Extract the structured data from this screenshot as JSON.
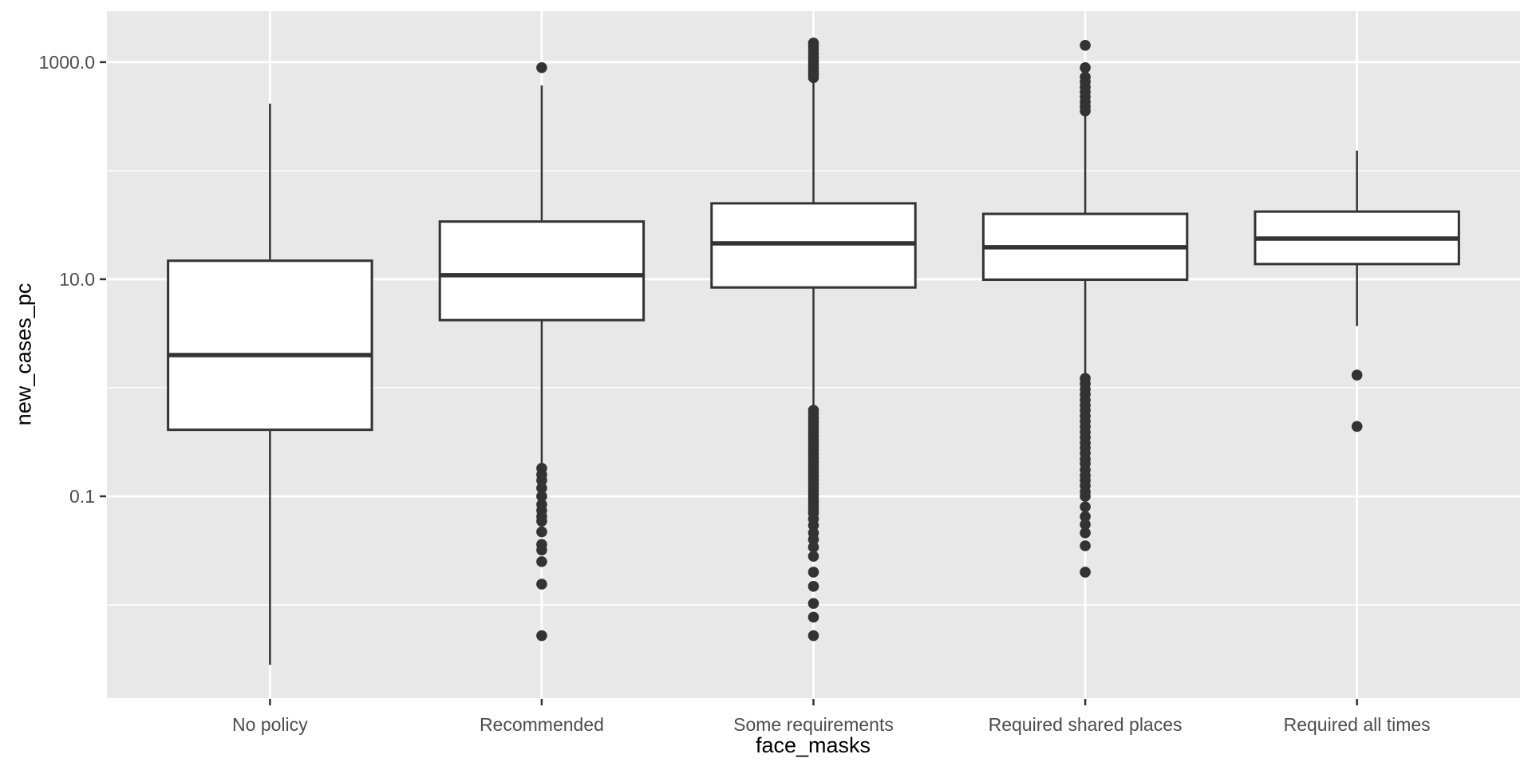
{
  "figure": {
    "xlabel": "face_masks",
    "ylabel": "new_cases_pc"
  },
  "style": {
    "panel_bg": "#E8E8E8",
    "gridline_color": "#FFFFFF",
    "box_stroke": "#333333",
    "box_fill": "#FFFFFF",
    "outlier_color": "#333333",
    "tick_label_color": "#4D4D4D",
    "axis_title_color": "#000000"
  },
  "chart_data": {
    "type": "boxplot",
    "orientation": "vertical",
    "title": "",
    "xlabel": "face_masks",
    "ylabel": "new_cases_pc",
    "y_scale": "log10",
    "ylim": [
      0.00138,
      2950
    ],
    "grid": {
      "horizontal_major": true,
      "horizontal_minor": true,
      "vertical_at_categories": true
    },
    "legend": "none",
    "y_major_ticks": [
      {
        "label": "1000.0",
        "value": 1000
      },
      {
        "label": "10.0",
        "value": 10
      },
      {
        "label": "0.1",
        "value": 0.1
      }
    ],
    "y_minor_gridlines": [
      100,
      1,
      0.01
    ],
    "categories": [
      "No policy",
      "Recommended",
      "Some requirements",
      "Required shared places",
      "Required all times"
    ],
    "boxes": [
      {
        "category": "No policy",
        "whisker_low": 0.0028,
        "q1": 0.41,
        "median": 2.0,
        "q3": 14.8,
        "whisker_high": 415,
        "outliers": []
      },
      {
        "category": "Recommended",
        "whisker_low": 0.19,
        "q1": 4.2,
        "median": 10.9,
        "q3": 34,
        "whisker_high": 610,
        "outliers": [
          890,
          0.181,
          0.158,
          0.14,
          0.119,
          0.1,
          0.084,
          0.074,
          0.065,
          0.059,
          0.047,
          0.036,
          0.032,
          0.025,
          0.0155,
          0.0052
        ]
      },
      {
        "category": "Some requirements",
        "whisker_low": 0.63,
        "q1": 8.4,
        "median": 21.4,
        "q3": 50,
        "whisker_high": 655,
        "outliers": [
          1500,
          1400,
          1300,
          1200,
          1100,
          1020,
          950,
          880,
          820,
          770,
          720,
          0.62,
          0.575,
          0.53,
          0.49,
          0.455,
          0.42,
          0.39,
          0.36,
          0.335,
          0.31,
          0.287,
          0.265,
          0.245,
          0.227,
          0.21,
          0.194,
          0.18,
          0.166,
          0.154,
          0.142,
          0.131,
          0.121,
          0.112,
          0.104,
          0.096,
          0.089,
          0.082,
          0.076,
          0.07,
          0.062,
          0.054,
          0.046,
          0.04,
          0.034,
          0.028,
          0.02,
          0.0148,
          0.0103,
          0.0077,
          0.0052
        ]
      },
      {
        "category": "Required shared places",
        "whisker_low": 1.25,
        "q1": 9.9,
        "median": 19.7,
        "q3": 40,
        "whisker_high": 320,
        "outliers": [
          1430,
          890,
          730,
          660,
          590,
          530,
          480,
          430,
          390,
          355,
          1.22,
          1.09,
          0.97,
          0.87,
          0.77,
          0.69,
          0.62,
          0.55,
          0.49,
          0.44,
          0.39,
          0.35,
          0.31,
          0.28,
          0.25,
          0.22,
          0.2,
          0.175,
          0.155,
          0.14,
          0.125,
          0.11,
          0.1,
          0.08,
          0.065,
          0.055,
          0.046,
          0.035,
          0.02
        ]
      },
      {
        "category": "Required all times",
        "whisker_low": 3.7,
        "q1": 13.8,
        "median": 23.7,
        "q3": 42,
        "whisker_high": 153,
        "outliers": [
          1.31,
          0.44
        ]
      }
    ]
  }
}
